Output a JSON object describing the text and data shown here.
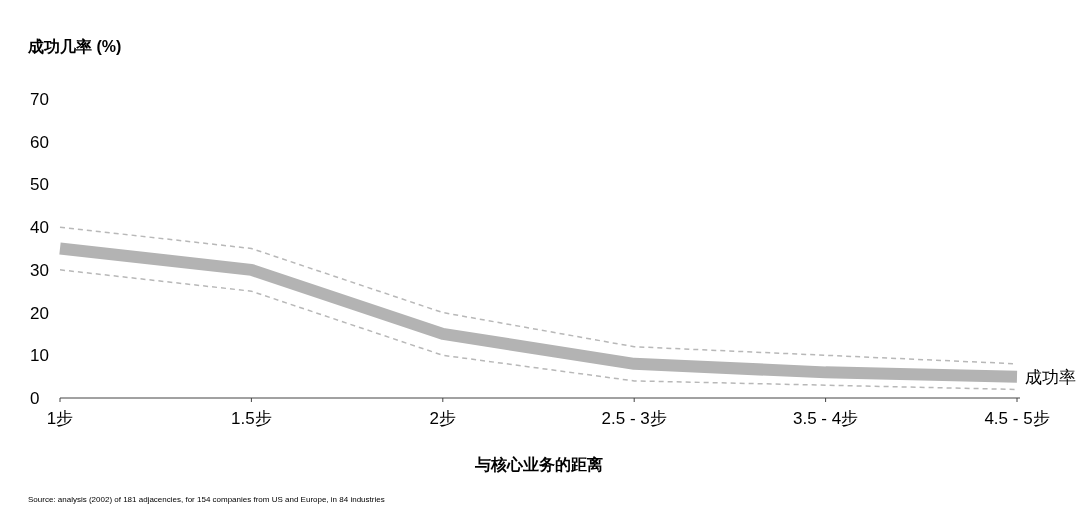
{
  "chart_data": {
    "type": "line",
    "ylabel": "成功几率 (%)",
    "xlabel": "与核心业务的距离",
    "annotations": [
      "Source: analysis (2002) of 181 adjacencies, for 154 companies from US and Europe, in 84 industries"
    ],
    "categories": [
      "1步",
      "1.5步",
      "2步",
      "2.5 - 3步",
      "3.5 - 4步",
      "4.5 - 5步"
    ],
    "ylim": [
      0,
      70
    ],
    "yticks": [
      0,
      10,
      20,
      30,
      40,
      50,
      60,
      70
    ],
    "grid": false,
    "series": [
      {
        "name": "成功率",
        "color": "#b3b3b3",
        "values": [
          35,
          30,
          15,
          8,
          6,
          5
        ]
      },
      {
        "color": "#b8b8b8",
        "line_style": "dashed",
        "values": [
          40,
          35,
          20,
          12,
          10,
          8
        ]
      },
      {
        "color": "#b8b8b8",
        "line_style": "dashed",
        "values": [
          30,
          25,
          10,
          4,
          3,
          2
        ]
      }
    ]
  }
}
